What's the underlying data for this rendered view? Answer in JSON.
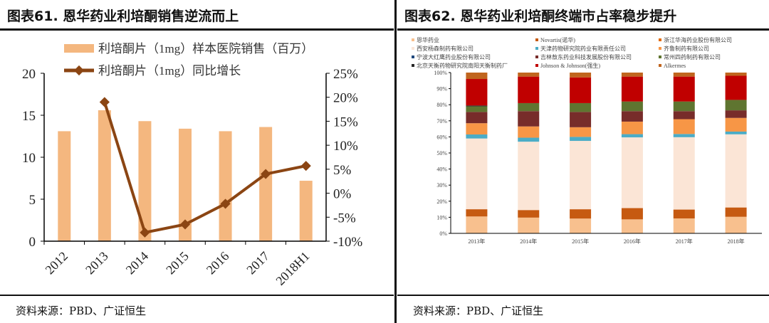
{
  "left": {
    "title": "图表61.  恩华药业利培酮销售逆流而上",
    "source": "资料来源：PBD、广证恒生"
  },
  "right": {
    "title": "图表62.  恩华药业利培酮终端市占率稳步提升",
    "source": "资料来源：PBD、广证恒生"
  },
  "chart_data": [
    {
      "type": "bar+line",
      "categories": [
        "2012",
        "2013",
        "2014",
        "2015",
        "2016",
        "2017",
        "2018H1"
      ],
      "series": [
        {
          "name": "利培酮片（1mg）样本医院销售（百万）",
          "kind": "bar",
          "axis": "left",
          "color": "#F4B77F",
          "values": [
            13.1,
            15.6,
            14.3,
            13.4,
            13.1,
            13.6,
            7.2
          ]
        },
        {
          "name": "利培酮片（1mg）同比增长",
          "kind": "line",
          "axis": "right",
          "color": "#8B4513",
          "values": [
            null,
            19,
            -8.2,
            -6.5,
            -2.2,
            4,
            5.7
          ]
        }
      ],
      "ylim_left": [
        0,
        20
      ],
      "yticks_left": [
        "0",
        "5",
        "10",
        "15",
        "20"
      ],
      "ylim_right": [
        -10,
        25
      ],
      "yticks_right": [
        "-10%",
        "-5%",
        "0%",
        "5%",
        "10%",
        "15%",
        "20%",
        "25%"
      ],
      "legend": "top",
      "grid": false
    },
    {
      "type": "stacked_bar",
      "categories": [
        "2013年",
        "2014年",
        "2015年",
        "2016年",
        "2017年",
        "2018年"
      ],
      "ylim": [
        0,
        100
      ],
      "yticks": [
        "0%",
        "10%",
        "20%",
        "30%",
        "40%",
        "50%",
        "60%",
        "70%",
        "80%",
        "90%",
        "100%"
      ],
      "legend": "top",
      "grid": false,
      "series": [
        {
          "name": "恩华药业",
          "color": "#F8C08E",
          "values": [
            10.5,
            9.8,
            9.2,
            8.7,
            9.3,
            10.3
          ]
        },
        {
          "name": "Novartis(诺华)",
          "color": "#C65A11",
          "values": [
            4.5,
            4.7,
            5.8,
            7,
            5.5,
            5.8
          ]
        },
        {
          "name": "浙江华海药业股份有限公司",
          "color": "#E26B0A",
          "values": [
            0,
            0,
            0,
            0,
            0,
            0
          ]
        },
        {
          "name": "西安杨森制药有限公司",
          "color": "#FBE5D6",
          "values": [
            44,
            42.5,
            42.5,
            44,
            45,
            45.5
          ]
        },
        {
          "name": "天津药物研究院药业有限责任公司",
          "color": "#4BACC6",
          "values": [
            2.5,
            2.5,
            2.5,
            2,
            2,
            1.7
          ]
        },
        {
          "name": "齐鲁制药有限公司",
          "color": "#F79646",
          "values": [
            7,
            7,
            6,
            7.8,
            9.2,
            8.5
          ]
        },
        {
          "name": "宁波大红鹰药业股份有限公司",
          "color": "#1F497D",
          "values": [
            0,
            0,
            0,
            0,
            0,
            0
          ]
        },
        {
          "name": "吉林敖东药业科技发展股份有限公司",
          "color": "#772C2A",
          "values": [
            7,
            9.5,
            9.5,
            6.5,
            5,
            4.7
          ]
        },
        {
          "name": "常州四药制药有限公司",
          "color": "#5F7530",
          "values": [
            3.5,
            5,
            5.5,
            6,
            6,
            6.5
          ]
        },
        {
          "name": "北京天衡药物研究院南阳天衡制药厂",
          "color": "#262626",
          "values": [
            0.5,
            0,
            0,
            0,
            0,
            0
          ]
        },
        {
          "name": "Johnson & Johnson(强生)",
          "color": "#C00000",
          "values": [
            16.5,
            16.5,
            16,
            15.5,
            15.5,
            15
          ]
        },
        {
          "name": "Alkermes",
          "color": "#C0651E",
          "values": [
            4,
            2.5,
            3,
            2.5,
            2.5,
            2
          ]
        }
      ]
    }
  ]
}
